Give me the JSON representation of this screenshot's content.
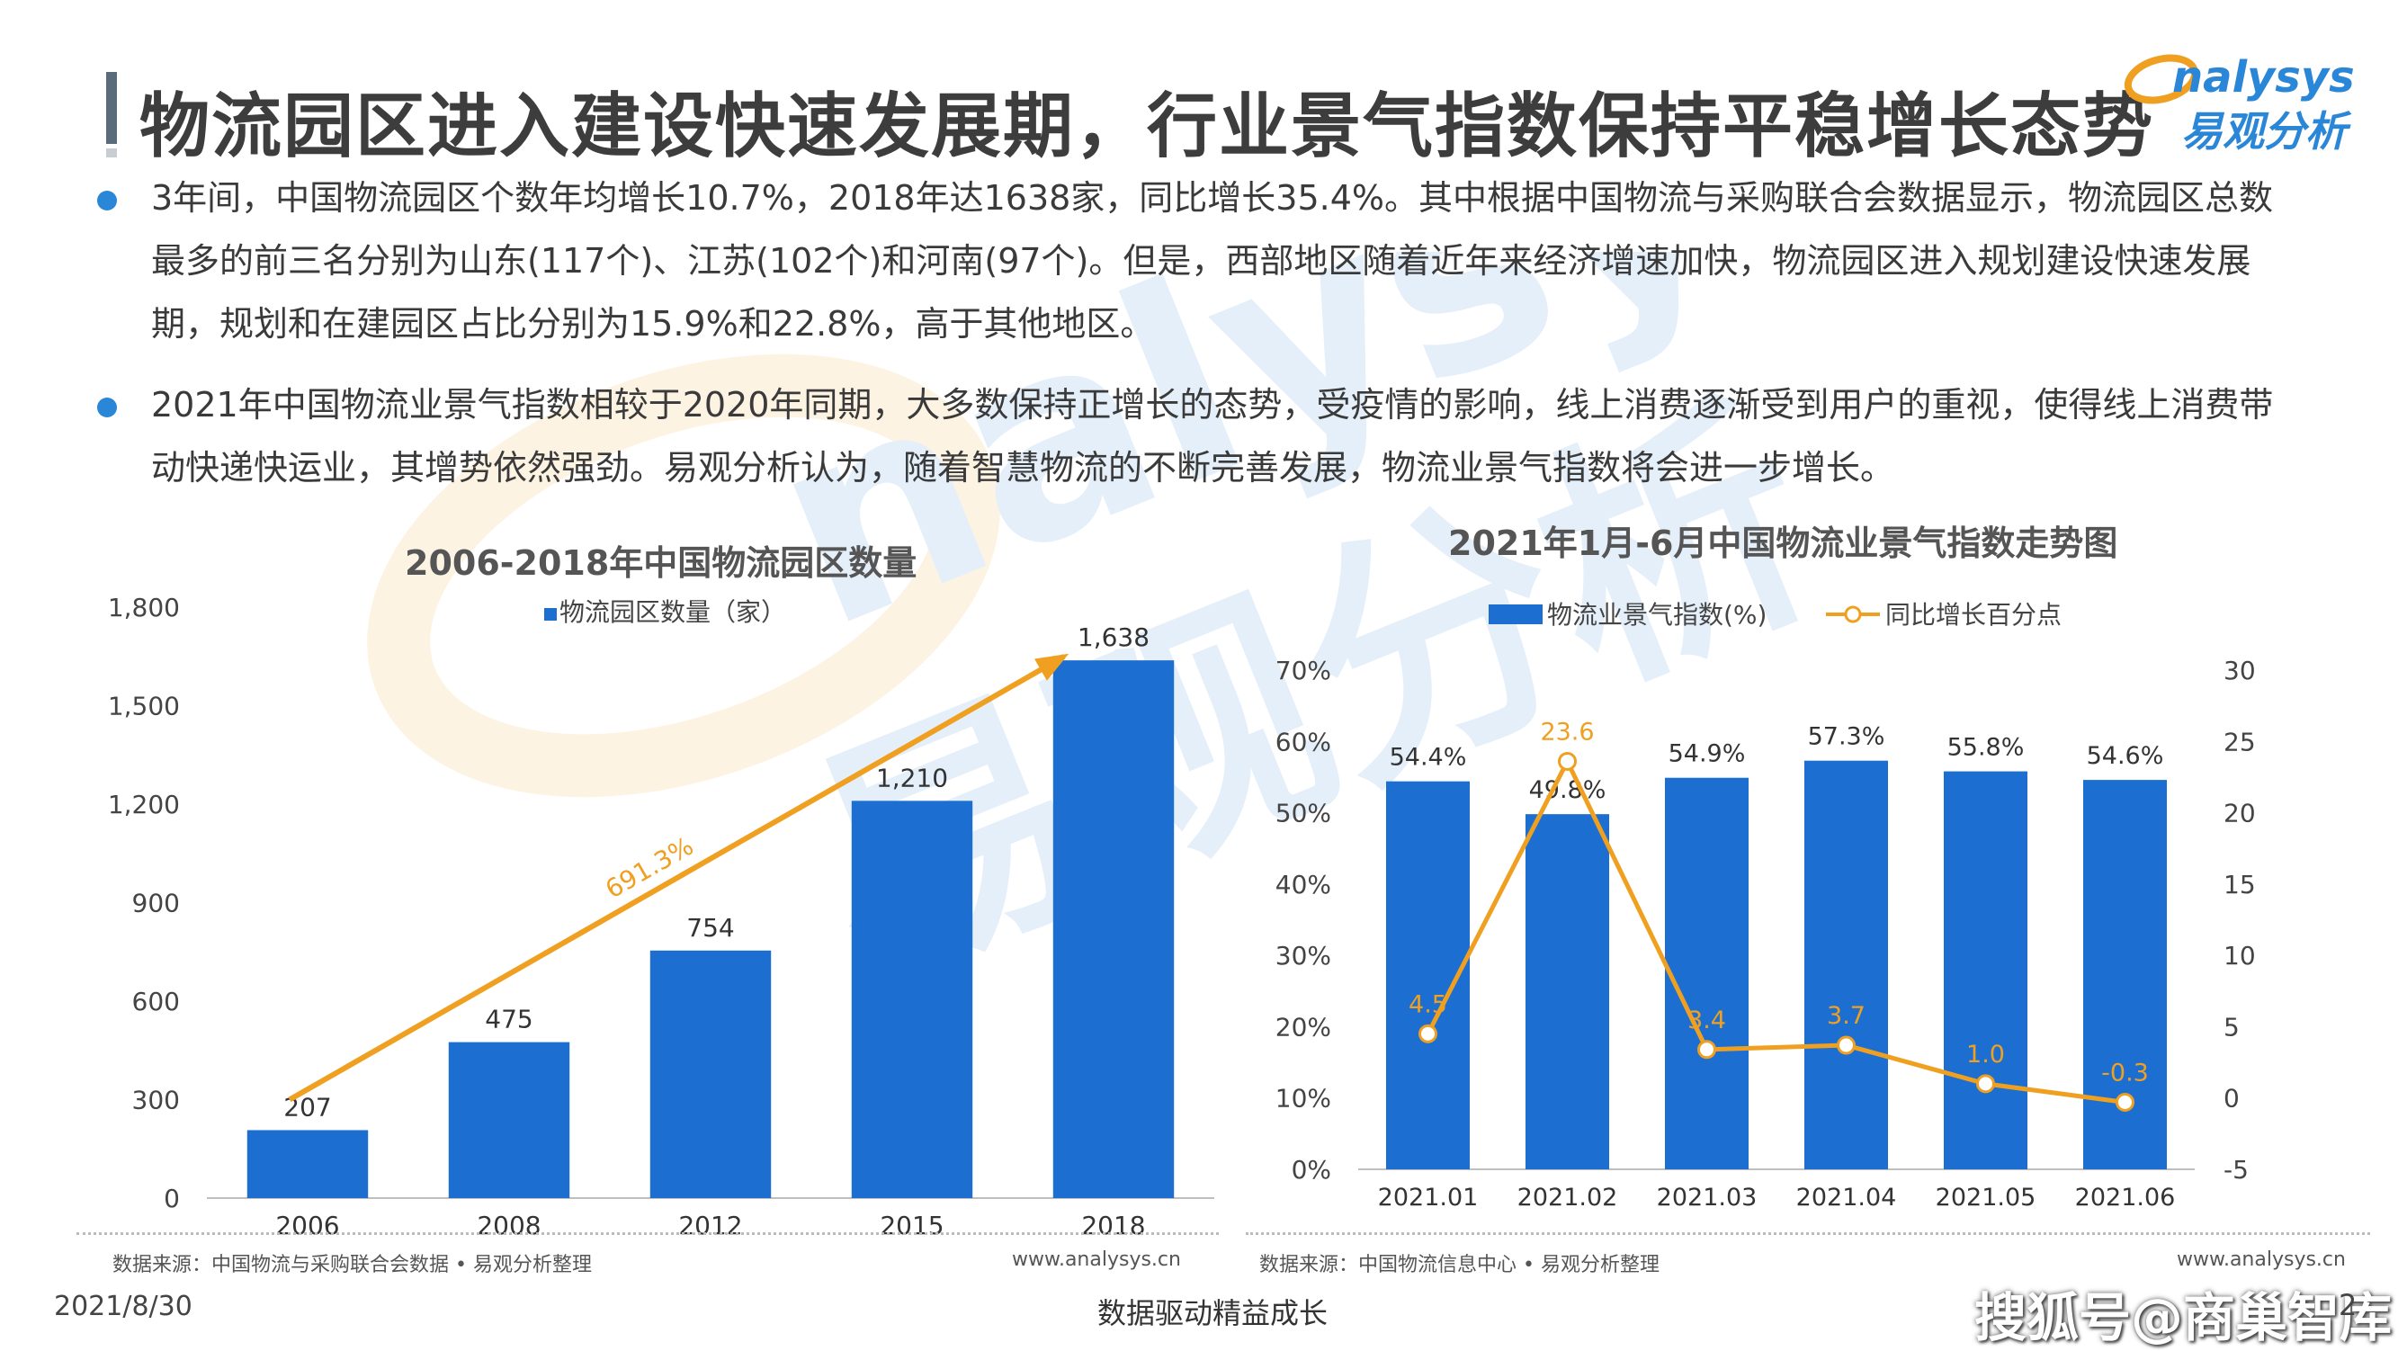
{
  "header": {
    "title": "物流园区进入建设快速发展期，行业景气指数保持平稳增长态势",
    "logo_text": "Analysys",
    "logo_cn": "易观分析"
  },
  "bullets": [
    "3年间，中国物流园区个数年均增长10.7%，2018年达1638家，同比增长35.4%。其中根据中国物流与采购联合会数据显示，物流园区总数最多的前三名分别为山东(117个)、江苏(102个)和河南(97个)。但是，西部地区随着近年来经济增速加快，物流园区进入规划建设快速发展期，规划和在建园区占比分别为15.9%和22.8%，高于其他地区。",
    "2021年中国物流业景气指数相较于2020年同期，大多数保持正增长的态势，受疫情的影响，线上消费逐渐受到用户的重视，使得线上消费带动快递快运业，其增势依然强劲。易观分析认为，随着智慧物流的不断完善发展，物流业景气指数将会进一步增长。"
  ],
  "chart_data": [
    {
      "type": "bar",
      "title": "2006-2018年中国物流园区数量",
      "categories": [
        "2006",
        "2008",
        "2012",
        "2015",
        "2018"
      ],
      "series": [
        {
          "name": "物流园区数量（家）",
          "values": [
            207,
            475,
            754,
            1210,
            1638
          ]
        }
      ],
      "value_labels": [
        "207",
        "475",
        "754",
        "1,210",
        "1,638"
      ],
      "ylim": [
        0,
        1800
      ],
      "yticks": [
        "0",
        "300",
        "600",
        "900",
        "1,200",
        "1,500",
        "1,800"
      ],
      "ytick_values": [
        0,
        300,
        600,
        900,
        1200,
        1500,
        1800
      ],
      "annotation": {
        "text": "691.3%",
        "from": [
          "2006",
          300
        ],
        "to": [
          "2018",
          1650
        ]
      },
      "legend": "top",
      "grid": false,
      "colors": {
        "bar": "#1c6fd1",
        "arrow": "#f0a020"
      }
    },
    {
      "type": "bar",
      "title": "2021年1月-6月中国物流业景气指数走势图",
      "categories": [
        "2021.01",
        "2021.02",
        "2021.03",
        "2021.04",
        "2021.05",
        "2021.06"
      ],
      "series": [
        {
          "name": "物流业景气指数(%)",
          "type": "bar",
          "axis": "left",
          "values": [
            54.4,
            49.8,
            54.9,
            57.3,
            55.8,
            54.6
          ],
          "labels": [
            "54.4%",
            "49.8%",
            "54.9%",
            "57.3%",
            "55.8%",
            "54.6%"
          ]
        },
        {
          "name": "同比增长百分点",
          "type": "line",
          "axis": "right",
          "values": [
            4.5,
            23.6,
            3.4,
            3.7,
            1.0,
            -0.3
          ],
          "labels": [
            "4.5",
            "23.6",
            "3.4",
            "3.7",
            "1.0",
            "-0.3"
          ]
        }
      ],
      "ylim_left": [
        0,
        70
      ],
      "yticks_left": [
        "0%",
        "10%",
        "20%",
        "30%",
        "40%",
        "50%",
        "60%",
        "70%"
      ],
      "ylim_right": [
        -5,
        30
      ],
      "yticks_right": [
        "-5",
        "0",
        "5",
        "10",
        "15",
        "20",
        "25",
        "30"
      ],
      "legend": "top",
      "grid": false,
      "colors": {
        "bar": "#1c6fd1",
        "line": "#f0a020"
      }
    }
  ],
  "sources": {
    "left": "数据来源：中国物流与采购联合会数据 • 易观分析整理",
    "left_web": "www.analysys.cn",
    "right": "数据来源：中国物流信息中心 • 易观分析整理",
    "right_web": "www.analysys.cn"
  },
  "footer": {
    "date": "2021/8/30",
    "slogan": "数据驱动精益成长",
    "sohu": "搜狐号@商巢智库",
    "page": "2"
  }
}
